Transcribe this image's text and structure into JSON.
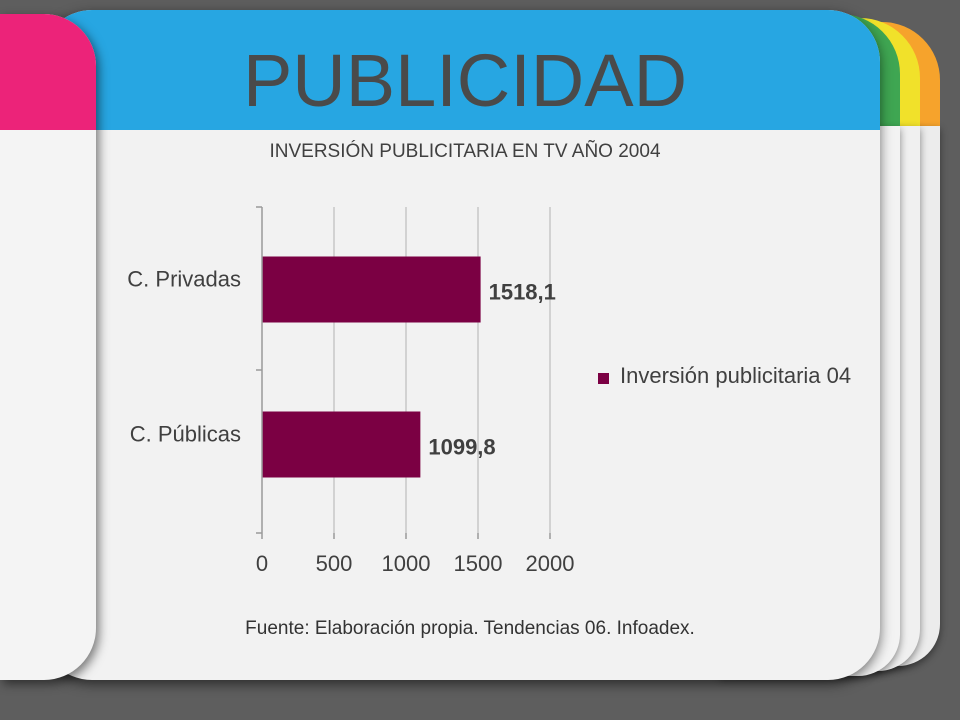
{
  "header": {
    "title": "PUBLICIDAD"
  },
  "colors": {
    "header_blue": "#27a6e2",
    "pink": "#ec2379",
    "green": "#3fa652",
    "yellow": "#f1e12a",
    "orange": "#f6a32c",
    "bar": "#7b0043"
  },
  "chart_data": {
    "type": "bar",
    "orientation": "horizontal",
    "title": "INVERSIÓN PUBLICITARIA EN TV AÑO 2004",
    "categories": [
      "C. Privadas",
      "C. Públicas"
    ],
    "series": [
      {
        "name": "Inversión publicitaria 04",
        "values": [
          1518.1,
          1099.8
        ]
      }
    ],
    "data_labels": [
      "1518,1",
      "1099,8"
    ],
    "xticks": [
      "0",
      "500",
      "1000",
      "1500",
      "2000"
    ],
    "xlim": [
      0,
      2000
    ],
    "grid": true,
    "legend": "right"
  },
  "footer": {
    "source": "Fuente: Elaboración propia. Tendencias 06. Infoadex."
  }
}
